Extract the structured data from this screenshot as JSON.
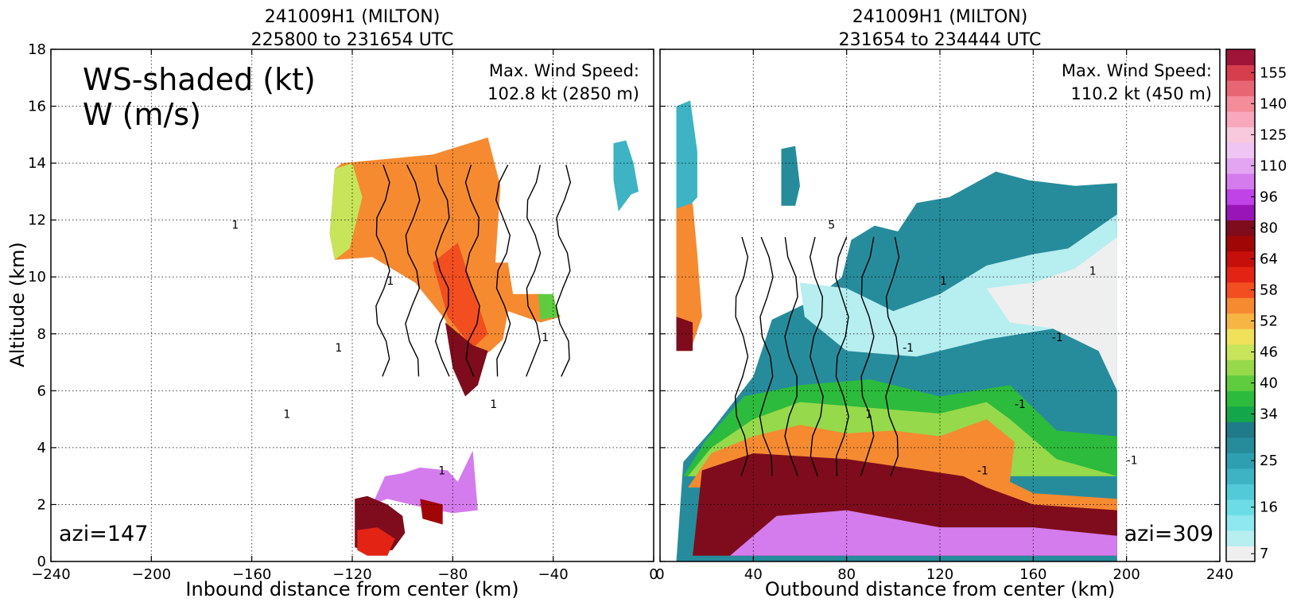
{
  "figure": {
    "ylabel": "Altitude (km)",
    "overlay_label_line1": "WS-shaded (kt)",
    "overlay_label_line2": "W (m/s)"
  },
  "chart_data": [
    {
      "type": "heatmap",
      "title_line1": "241009H1 (MILTON)",
      "title_line2": "225800 to 231654 UTC",
      "xlabel": "Inbound distance from center (km)",
      "ylabel": "Altitude (km)",
      "xlim": [
        -240,
        0
      ],
      "ylim": [
        0,
        18
      ],
      "xticks": [
        "−240",
        "−200",
        "−160",
        "−120",
        "−80",
        "−40",
        "0"
      ],
      "xtick_values": [
        -240,
        -200,
        -160,
        -120,
        -80,
        -40,
        0
      ],
      "yticks": [
        0,
        2,
        4,
        6,
        8,
        10,
        12,
        14,
        16,
        18
      ],
      "grid": true,
      "max_wind_label": "Max. Wind Speed:",
      "max_wind_value": "102.8 kt (2850 m)",
      "azimuth_label": "azi=147",
      "contour_labels": [
        "1",
        "1",
        "1",
        "1",
        "1",
        "1",
        "1"
      ],
      "regions": [
        {
          "speed_kt": 55,
          "points": [
            [
              -129,
              11.5
            ],
            [
              -127,
              13.8
            ],
            [
              -124,
              14.0
            ],
            [
              -88,
              14.3
            ],
            [
              -66,
              14.9
            ],
            [
              -61,
              13.2
            ],
            [
              -63,
              10.5
            ],
            [
              -58,
              10.5
            ],
            [
              -56,
              9.4
            ],
            [
              -44,
              9.4
            ],
            [
              -37,
              8.6
            ],
            [
              -45,
              8.4
            ],
            [
              -58,
              8.8
            ],
            [
              -60,
              7.8
            ],
            [
              -65,
              7.4
            ],
            [
              -72,
              7.0
            ],
            [
              -78,
              7.3
            ],
            [
              -83,
              8.5
            ],
            [
              -95,
              9.8
            ],
            [
              -112,
              10.7
            ],
            [
              -127,
              10.6
            ]
          ]
        },
        {
          "speed_kt": 46,
          "points": [
            [
              -129,
              11.5
            ],
            [
              -127,
              13.8
            ],
            [
              -120,
              14.0
            ],
            [
              -116,
              12.8
            ],
            [
              -121,
              11.0
            ],
            [
              -127,
              10.6
            ]
          ]
        },
        {
          "speed_kt": 40,
          "points": [
            [
              -46,
              9.4
            ],
            [
              -40,
              9.4
            ],
            [
              -38,
              8.6
            ],
            [
              -45,
              8.5
            ]
          ]
        },
        {
          "speed_kt": 60,
          "points": [
            [
              -88,
              10.5
            ],
            [
              -78,
              11.2
            ],
            [
              -72,
              9.6
            ],
            [
              -66,
              8.0
            ],
            [
              -72,
              7.5
            ],
            [
              -82,
              8.6
            ]
          ]
        },
        {
          "speed_kt": 80,
          "points": [
            [
              -83,
              8.4
            ],
            [
              -72,
              7.6
            ],
            [
              -66,
              7.4
            ],
            [
              -70,
              6.2
            ],
            [
              -75,
              5.8
            ],
            [
              -80,
              6.8
            ]
          ]
        },
        {
          "speed_kt": 103,
          "points": [
            [
              -112,
              2.0
            ],
            [
              -107,
              3.0
            ],
            [
              -100,
              3.1
            ],
            [
              -93,
              3.3
            ],
            [
              -82,
              3.2
            ],
            [
              -78,
              2.8
            ],
            [
              -72,
              3.9
            ],
            [
              -70,
              1.8
            ],
            [
              -80,
              1.7
            ],
            [
              -92,
              1.9
            ],
            [
              -106,
              2.2
            ]
          ]
        },
        {
          "speed_kt": 80,
          "points": [
            [
              -119,
              2.2
            ],
            [
              -114,
              2.3
            ],
            [
              -106,
              2.0
            ],
            [
              -100,
              1.6
            ],
            [
              -99,
              1.0
            ],
            [
              -104,
              0.4
            ],
            [
              -113,
              0.3
            ],
            [
              -119,
              0.5
            ]
          ]
        },
        {
          "speed_kt": 62,
          "points": [
            [
              -118,
              1.1
            ],
            [
              -110,
              1.2
            ],
            [
              -103,
              0.8
            ],
            [
              -106,
              0.2
            ],
            [
              -114,
              0.2
            ],
            [
              -118,
              0.4
            ]
          ]
        },
        {
          "speed_kt": 78,
          "points": [
            [
              -93,
              2.2
            ],
            [
              -84,
              2.0
            ],
            [
              -84,
              1.3
            ],
            [
              -88,
              1.4
            ],
            [
              -92,
              1.5
            ]
          ]
        },
        {
          "speed_kt": 22,
          "points": [
            [
              -16,
              14.7
            ],
            [
              -11,
              14.8
            ],
            [
              -8,
              14.0
            ],
            [
              -6,
              13.0
            ],
            [
              -9,
              12.9
            ],
            [
              -14,
              12.3
            ],
            [
              -16,
              13.4
            ]
          ]
        }
      ]
    },
    {
      "type": "heatmap",
      "title_line1": "241009H1 (MILTON)",
      "title_line2": "231654 to 234444 UTC",
      "xlabel": "Outbound distance from center (km)",
      "ylabel": "",
      "xlim": [
        0,
        240
      ],
      "ylim": [
        0,
        18
      ],
      "xticks": [
        "0",
        "40",
        "80",
        "120",
        "160",
        "200",
        "240"
      ],
      "xtick_values": [
        0,
        40,
        80,
        120,
        160,
        200,
        240
      ],
      "yticks": [
        0,
        2,
        4,
        6,
        8,
        10,
        12,
        14,
        16,
        18
      ],
      "grid": true,
      "max_wind_label": "Max. Wind Speed:",
      "max_wind_value": "110.2 kt (450 m)",
      "azimuth_label": "azi=309",
      "contour_labels": [
        "5",
        "1",
        "-1",
        "1",
        "-1",
        "-1",
        "-1",
        "1",
        "-1"
      ],
      "regions": [
        {
          "speed_kt": 28,
          "points": [
            [
              7,
              0
            ],
            [
              10,
              3.5
            ],
            [
              22,
              4.6
            ],
            [
              40,
              6.5
            ],
            [
              48,
              8.5
            ],
            [
              66,
              9.2
            ],
            [
              78,
              10.0
            ],
            [
              82,
              11.3
            ],
            [
              92,
              11.8
            ],
            [
              102,
              11.6
            ],
            [
              110,
              12.6
            ],
            [
              124,
              12.8
            ],
            [
              144,
              13.7
            ],
            [
              158,
              13.4
            ],
            [
              178,
              13.2
            ],
            [
              196,
              13.3
            ],
            [
              196,
              0
            ]
          ]
        },
        {
          "speed_kt": 38,
          "points": [
            [
              10,
              3.0
            ],
            [
              20,
              4.3
            ],
            [
              36,
              5.8
            ],
            [
              60,
              6.2
            ],
            [
              90,
              6.4
            ],
            [
              120,
              5.8
            ],
            [
              150,
              6.2
            ],
            [
              170,
              4.6
            ],
            [
              196,
              4.4
            ],
            [
              196,
              3.0
            ],
            [
              18,
              3.0
            ]
          ]
        },
        {
          "speed_kt": 44,
          "points": [
            [
              12,
              3.0
            ],
            [
              22,
              4.0
            ],
            [
              40,
              5.0
            ],
            [
              60,
              5.6
            ],
            [
              90,
              5.4
            ],
            [
              120,
              5.2
            ],
            [
              140,
              5.6
            ],
            [
              150,
              5.0
            ],
            [
              170,
              3.6
            ],
            [
              196,
              3.0
            ]
          ]
        },
        {
          "speed_kt": 55,
          "points": [
            [
              12,
              2.6
            ],
            [
              22,
              3.8
            ],
            [
              40,
              4.4
            ],
            [
              60,
              4.8
            ],
            [
              80,
              4.5
            ],
            [
              100,
              4.6
            ],
            [
              120,
              4.4
            ],
            [
              140,
              5.0
            ],
            [
              152,
              4.2
            ],
            [
              150,
              2.8
            ],
            [
              160,
              2.4
            ],
            [
              196,
              2.2
            ],
            [
              196,
              1.3
            ],
            [
              140,
              1.6
            ],
            [
              100,
              2.6
            ]
          ]
        },
        {
          "speed_kt": 85,
          "points": [
            [
              14,
              0.2
            ],
            [
              18,
              3.2
            ],
            [
              40,
              3.8
            ],
            [
              80,
              3.6
            ],
            [
              130,
              3.0
            ],
            [
              140,
              2.6
            ],
            [
              160,
              2.0
            ],
            [
              196,
              1.8
            ],
            [
              196,
              0.2
            ]
          ]
        },
        {
          "speed_kt": 108,
          "points": [
            [
              30,
              0.2
            ],
            [
              50,
              1.6
            ],
            [
              80,
              1.8
            ],
            [
              120,
              1.2
            ],
            [
              160,
              1.2
            ],
            [
              196,
              0.9
            ],
            [
              196,
              0.2
            ]
          ]
        },
        {
          "speed_kt": 12,
          "points": [
            [
              60,
              9.8
            ],
            [
              80,
              9.6
            ],
            [
              100,
              8.8
            ],
            [
              120,
              9.4
            ],
            [
              140,
              10.4
            ],
            [
              160,
              10.8
            ],
            [
              175,
              11.0
            ],
            [
              196,
              12.2
            ],
            [
              196,
              8.0
            ],
            [
              170,
              8.2
            ],
            [
              140,
              7.8
            ],
            [
              110,
              7.2
            ],
            [
              80,
              7.4
            ],
            [
              62,
              8.6
            ]
          ]
        },
        {
          "speed_kt": 7,
          "points": [
            [
              140,
              9.6
            ],
            [
              160,
              9.8
            ],
            [
              178,
              10.3
            ],
            [
              196,
              11.4
            ],
            [
              196,
              6.0
            ],
            [
              188,
              7.4
            ],
            [
              168,
              8.2
            ],
            [
              150,
              8.4
            ]
          ]
        },
        {
          "speed_kt": 22,
          "points": [
            [
              7,
              16.0
            ],
            [
              13,
              16.2
            ],
            [
              16,
              14.4
            ],
            [
              16,
              12.8
            ],
            [
              7,
              12.0
            ]
          ]
        },
        {
          "speed_kt": 55,
          "points": [
            [
              7,
              12.4
            ],
            [
              14,
              12.6
            ],
            [
              16,
              10.8
            ],
            [
              18,
              8.6
            ],
            [
              13,
              7.4
            ],
            [
              7,
              7.4
            ]
          ]
        },
        {
          "speed_kt": 80,
          "points": [
            [
              7,
              8.6
            ],
            [
              14,
              8.4
            ],
            [
              14,
              7.4
            ],
            [
              7,
              7.4
            ]
          ]
        },
        {
          "speed_kt": 28,
          "points": [
            [
              52,
              14.5
            ],
            [
              58,
              14.6
            ],
            [
              60,
              13.2
            ],
            [
              58,
              12.5
            ],
            [
              52,
              12.5
            ]
          ]
        }
      ]
    }
  ],
  "colorbar": {
    "levels": [
      7,
      10,
      13,
      16,
      19,
      22,
      25,
      28,
      31,
      34,
      37,
      40,
      43,
      46,
      49,
      52,
      55,
      58,
      61,
      64,
      72,
      80,
      88,
      96,
      103,
      110,
      118,
      125,
      133,
      140,
      148,
      155,
      162
    ],
    "colors": [
      "#efefef",
      "#b7eef0",
      "#8fe8ef",
      "#6cdde7",
      "#52cad8",
      "#3db3c3",
      "#2e9fb0",
      "#268c9c",
      "#1f7a8a",
      "#13a64b",
      "#2cbb3c",
      "#5fcb3e",
      "#96d94b",
      "#c8e45a",
      "#f0e05a",
      "#f7b544",
      "#f58a31",
      "#f24e1f",
      "#e32414",
      "#c60e0a",
      "#a00606",
      "#7e0c1c",
      "#9a15b8",
      "#bf43e6",
      "#d47ced",
      "#e3a5f1",
      "#efc5f4",
      "#f8c8dd",
      "#f7a8bd",
      "#f48c9a",
      "#e86673",
      "#d63d4d",
      "#a0143a"
    ],
    "tick_labels": [
      "7",
      "16",
      "25",
      "34",
      "40",
      "46",
      "52",
      "58",
      "64",
      "80",
      "96",
      "110",
      "125",
      "140",
      "155"
    ],
    "tick_values": [
      7,
      16,
      25,
      34,
      40,
      46,
      52,
      58,
      64,
      80,
      96,
      110,
      125,
      140,
      155
    ]
  }
}
